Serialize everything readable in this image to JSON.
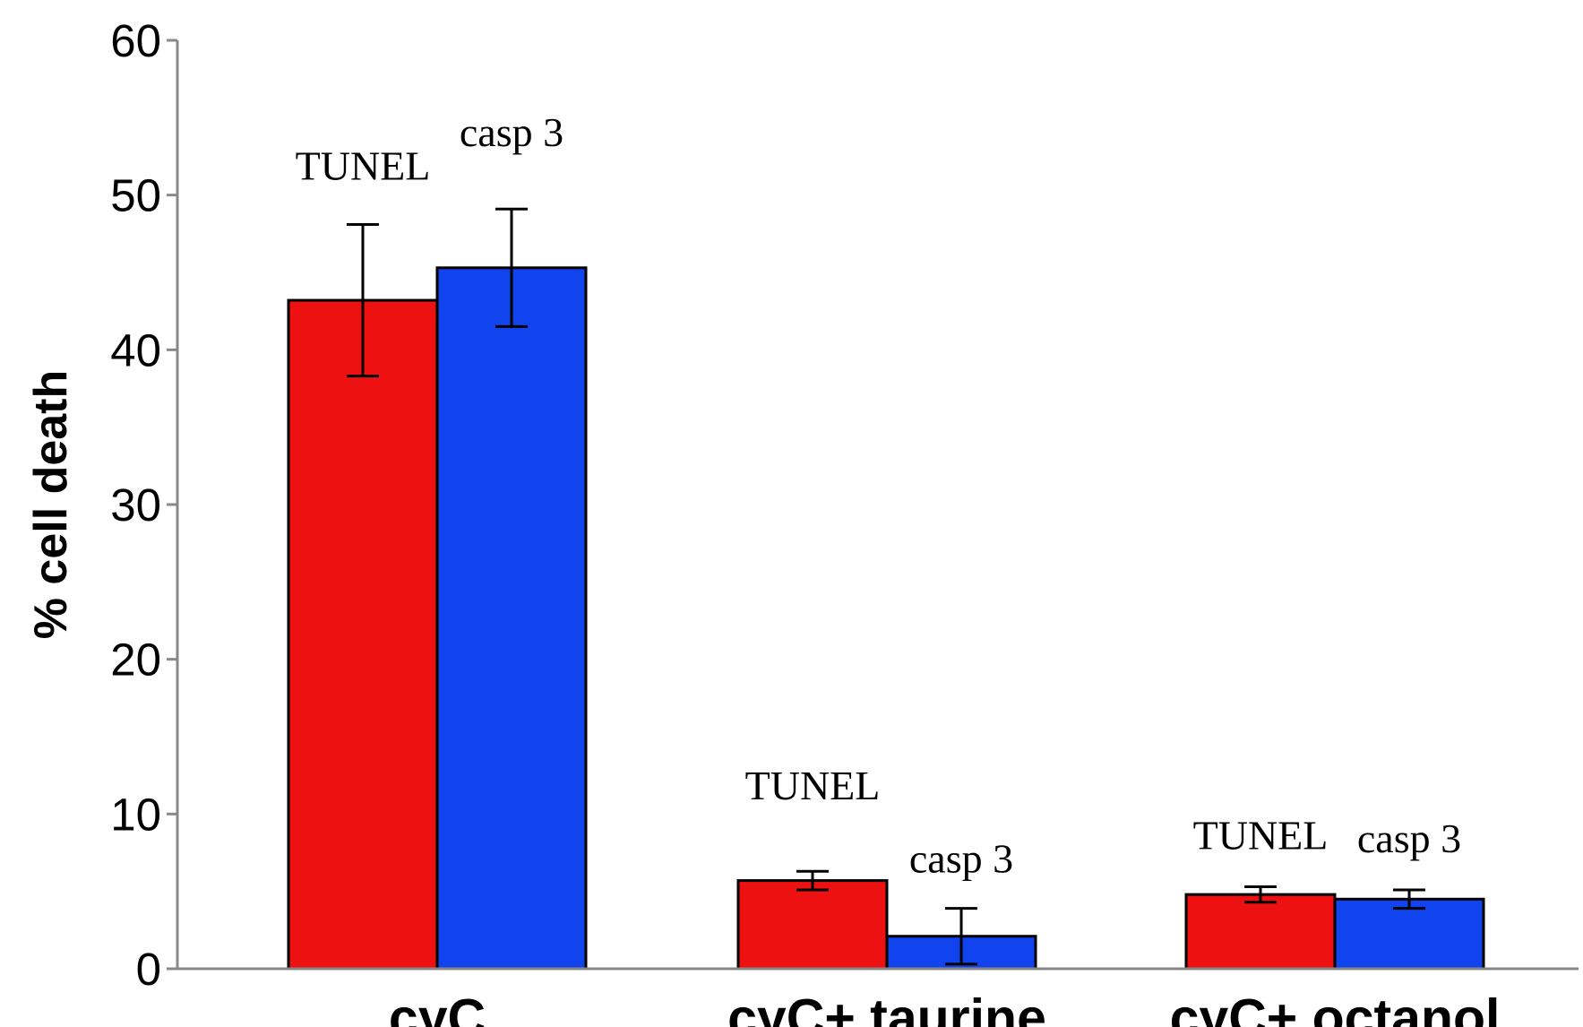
{
  "chart_data": {
    "type": "bar",
    "title": "",
    "xlabel": "",
    "ylabel": "% cell death",
    "ylim": [
      0,
      60
    ],
    "yticks": [
      0,
      10,
      20,
      30,
      40,
      50,
      60
    ],
    "categories": [
      "cyC",
      "cyC+ taurine",
      "cyC+ octanol"
    ],
    "series": [
      {
        "color": "#ee1111",
        "values": [
          43.2,
          5.7,
          4.8
        ],
        "errors": [
          4.9,
          0.6,
          0.5
        ],
        "labels": [
          "TUNEL",
          "TUNEL",
          "TUNEL"
        ]
      },
      {
        "color": "#1144ee",
        "values": [
          45.3,
          2.1,
          4.5
        ],
        "errors": [
          3.8,
          1.8,
          0.6
        ],
        "labels": [
          "casp 3",
          "casp 3",
          "casp 3"
        ]
      }
    ],
    "grid": false,
    "legend": "none"
  }
}
